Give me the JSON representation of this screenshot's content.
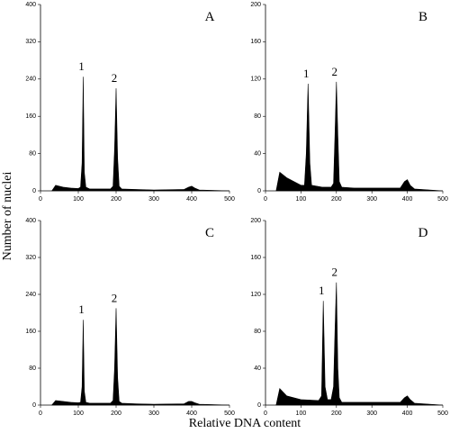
{
  "figure": {
    "ylabel": "Number of nuclei",
    "xlabel": "Relative DNA content"
  },
  "chart_data": [
    {
      "type": "area",
      "letter": "A",
      "peak_labels": [
        "1",
        "2"
      ],
      "color": "#000000",
      "x": [
        30,
        40,
        60,
        80,
        100,
        106,
        110,
        113,
        116,
        120,
        130,
        160,
        185,
        192,
        196,
        200,
        204,
        208,
        215,
        250,
        300,
        380,
        392,
        400,
        408,
        420,
        500
      ],
      "values": [
        0,
        12,
        8,
        6,
        5,
        8,
        60,
        245,
        40,
        8,
        4,
        4,
        4,
        10,
        90,
        220,
        70,
        10,
        4,
        3,
        2,
        3,
        8,
        10,
        6,
        2,
        0
      ],
      "xlim": [
        0,
        500
      ],
      "xticks": [
        0,
        100,
        200,
        300,
        400,
        500
      ],
      "ylim": [
        0,
        400
      ],
      "yticks": [
        0,
        80,
        160,
        240,
        320,
        400
      ]
    },
    {
      "type": "area",
      "letter": "B",
      "peak_labels": [
        "1",
        "2"
      ],
      "color": "#000000",
      "x": [
        30,
        40,
        60,
        80,
        100,
        110,
        115,
        120,
        125,
        130,
        160,
        185,
        192,
        196,
        200,
        204,
        208,
        215,
        250,
        380,
        392,
        400,
        408,
        420,
        500
      ],
      "values": [
        0,
        20,
        14,
        10,
        6,
        6,
        40,
        115,
        30,
        6,
        4,
        4,
        8,
        60,
        117,
        60,
        10,
        4,
        3,
        3,
        10,
        12,
        6,
        2,
        0
      ],
      "xlim": [
        0,
        500
      ],
      "xticks": [
        0,
        100,
        200,
        300,
        400,
        500
      ],
      "ylim": [
        0,
        200
      ],
      "yticks": [
        0,
        40,
        80,
        120,
        160,
        200
      ]
    },
    {
      "type": "area",
      "letter": "C",
      "peak_labels": [
        "1",
        "2"
      ],
      "color": "#000000",
      "x": [
        30,
        40,
        60,
        80,
        100,
        106,
        110,
        113,
        116,
        120,
        130,
        160,
        185,
        192,
        196,
        200,
        204,
        208,
        215,
        250,
        300,
        380,
        392,
        400,
        408,
        420,
        500
      ],
      "values": [
        0,
        10,
        8,
        6,
        5,
        6,
        40,
        185,
        30,
        6,
        4,
        4,
        4,
        10,
        80,
        210,
        60,
        8,
        4,
        3,
        2,
        3,
        8,
        8,
        5,
        2,
        0
      ],
      "xlim": [
        0,
        500
      ],
      "xticks": [
        0,
        100,
        200,
        300,
        400,
        500
      ],
      "ylim": [
        0,
        400
      ],
      "yticks": [
        0,
        80,
        160,
        240,
        320,
        400
      ]
    },
    {
      "type": "area",
      "letter": "D",
      "peak_labels": [
        "1",
        "2"
      ],
      "color": "#000000",
      "x": [
        30,
        40,
        60,
        100,
        150,
        158,
        163,
        168,
        175,
        185,
        192,
        196,
        200,
        204,
        208,
        215,
        250,
        380,
        392,
        400,
        408,
        420,
        500
      ],
      "values": [
        0,
        18,
        10,
        6,
        5,
        10,
        113,
        20,
        6,
        6,
        20,
        80,
        133,
        40,
        8,
        3,
        3,
        3,
        8,
        10,
        6,
        2,
        0
      ],
      "xlim": [
        0,
        500
      ],
      "xticks": [
        0,
        100,
        200,
        300,
        400,
        500
      ],
      "ylim": [
        0,
        200
      ],
      "yticks": [
        0,
        40,
        80,
        120,
        160,
        200
      ]
    }
  ]
}
